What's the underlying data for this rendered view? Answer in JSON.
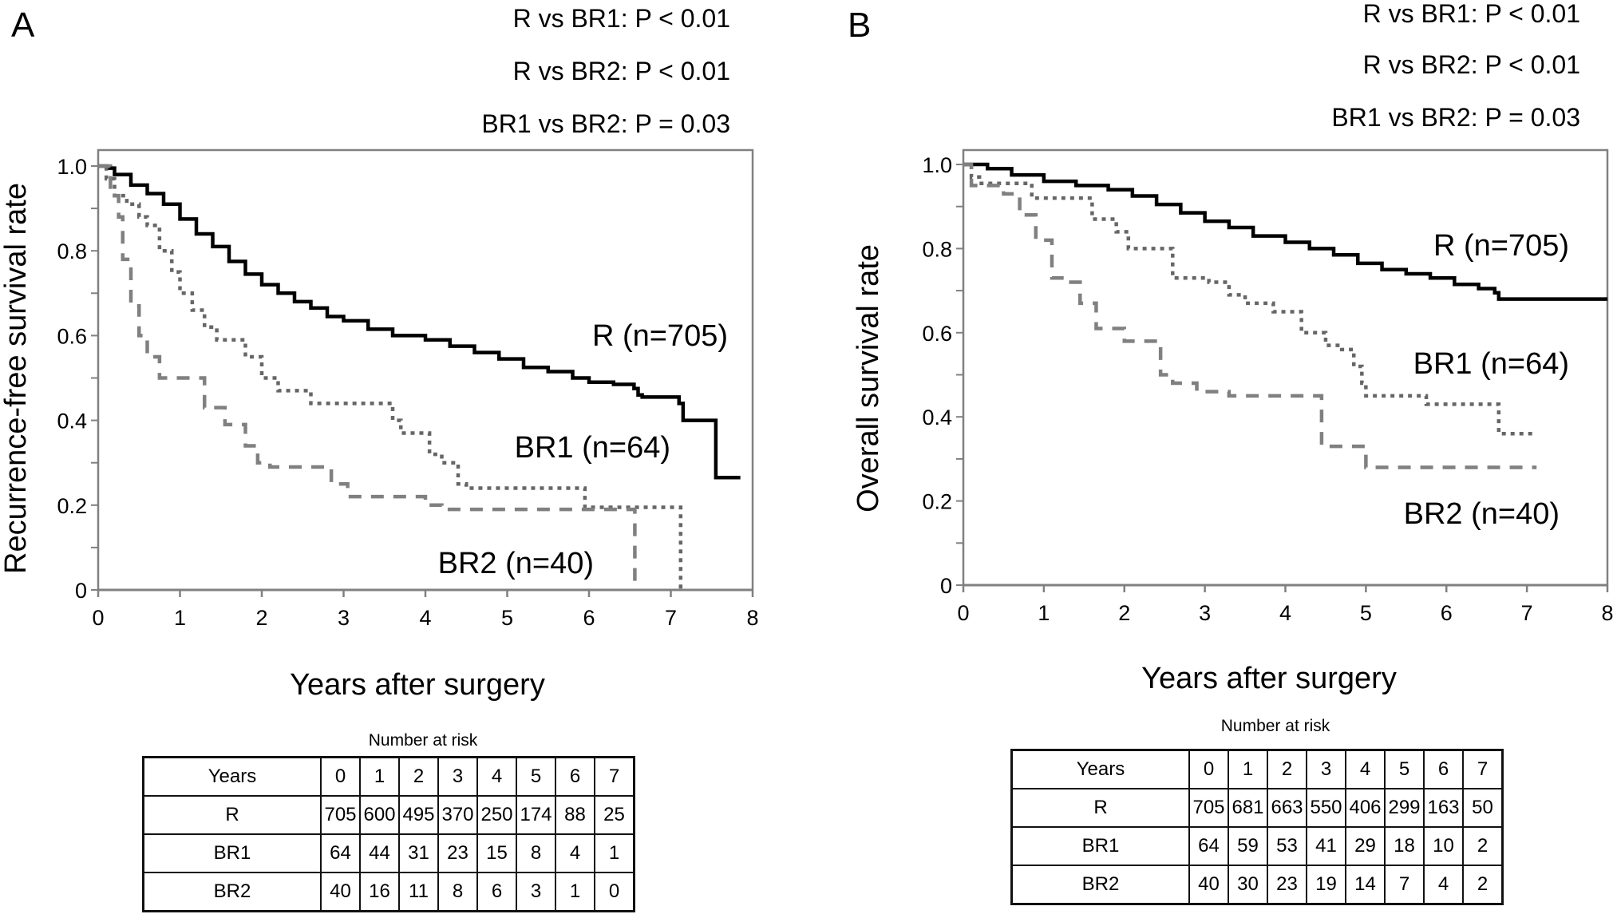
{
  "chart_data": [
    {
      "panel": "A",
      "type": "line",
      "step": true,
      "title": "",
      "xlabel": "Years after surgery",
      "ylabel": "Recurrence-free survival rate",
      "xlim": [
        0,
        8
      ],
      "ylim": [
        0,
        1.0
      ],
      "xticks": [
        "0",
        "1",
        "2",
        "3",
        "4",
        "5",
        "6",
        "7",
        "8"
      ],
      "yticks": [
        "0",
        "0.2",
        "0.4",
        "0.6",
        "0.8",
        "1.0"
      ],
      "grid": false,
      "annotations": [
        "R vs BR1: P < 0.01",
        "R vs BR2: P < 0.01",
        "BR1 vs BR2: P = 0.03"
      ],
      "series": [
        {
          "name": "R (n=705)",
          "style": "solid",
          "color": "#000000",
          "x": [
            0,
            0.1,
            0.2,
            0.4,
            0.6,
            0.8,
            1.0,
            1.2,
            1.4,
            1.6,
            1.8,
            2.0,
            2.2,
            2.4,
            2.6,
            2.8,
            3.0,
            3.3,
            3.6,
            4.0,
            4.3,
            4.6,
            4.9,
            5.2,
            5.5,
            5.8,
            6.0,
            6.3,
            6.55,
            6.6,
            6.65,
            7.1,
            7.15,
            7.55,
            7.85
          ],
          "y": [
            1.0,
            0.995,
            0.98,
            0.955,
            0.935,
            0.91,
            0.875,
            0.84,
            0.81,
            0.775,
            0.745,
            0.72,
            0.7,
            0.68,
            0.665,
            0.645,
            0.635,
            0.615,
            0.6,
            0.59,
            0.575,
            0.56,
            0.545,
            0.525,
            0.515,
            0.5,
            0.49,
            0.485,
            0.475,
            0.46,
            0.455,
            0.44,
            0.4,
            0.265,
            0.265
          ]
        },
        {
          "name": "BR1 (n=64)",
          "style": "dotted",
          "color": "#666666",
          "x": [
            0,
            0.1,
            0.2,
            0.35,
            0.5,
            0.6,
            0.75,
            0.9,
            1.0,
            1.15,
            1.3,
            1.45,
            1.65,
            1.8,
            2.0,
            2.2,
            2.4,
            2.6,
            2.75,
            3.1,
            3.5,
            3.6,
            3.7,
            3.85,
            4.05,
            4.2,
            4.4,
            4.5,
            4.75,
            5.9,
            5.95,
            7.1,
            7.12
          ],
          "y": [
            1.0,
            0.97,
            0.93,
            0.91,
            0.88,
            0.86,
            0.8,
            0.75,
            0.7,
            0.66,
            0.62,
            0.59,
            0.59,
            0.55,
            0.5,
            0.47,
            0.47,
            0.44,
            0.44,
            0.44,
            0.44,
            0.4,
            0.37,
            0.37,
            0.32,
            0.3,
            0.25,
            0.24,
            0.24,
            0.24,
            0.195,
            0.195,
            0.0
          ]
        },
        {
          "name": "BR2 (n=40)",
          "style": "dashed",
          "color": "#808080",
          "x": [
            0,
            0.15,
            0.25,
            0.3,
            0.4,
            0.5,
            0.6,
            0.75,
            1.0,
            1.3,
            1.55,
            1.8,
            1.95,
            2.1,
            2.85,
            3.05,
            4.0,
            4.2,
            5.9,
            6.55,
            6.56
          ],
          "y": [
            1.0,
            0.93,
            0.88,
            0.78,
            0.67,
            0.6,
            0.55,
            0.5,
            0.5,
            0.43,
            0.39,
            0.34,
            0.3,
            0.29,
            0.25,
            0.22,
            0.2,
            0.19,
            0.19,
            0.19,
            0.0
          ]
        }
      ],
      "number_at_risk": {
        "title": "Number at risk",
        "header": [
          "Years",
          "0",
          "1",
          "2",
          "3",
          "4",
          "5",
          "6",
          "7"
        ],
        "rows": [
          [
            "R",
            "705",
            "600",
            "495",
            "370",
            "250",
            "174",
            "88",
            "25"
          ],
          [
            "BR1",
            "64",
            "44",
            "31",
            "23",
            "15",
            "8",
            "4",
            "1"
          ],
          [
            "BR2",
            "40",
            "16",
            "11",
            "8",
            "6",
            "3",
            "1",
            "0"
          ]
        ]
      }
    },
    {
      "panel": "B",
      "type": "line",
      "step": true,
      "title": "",
      "xlabel": "Years after surgery",
      "ylabel": "Overall survival rate",
      "xlim": [
        0,
        8
      ],
      "ylim": [
        0,
        1.0
      ],
      "xticks": [
        "0",
        "1",
        "2",
        "3",
        "4",
        "5",
        "6",
        "7",
        "8"
      ],
      "yticks": [
        "0",
        "0.2",
        "0.4",
        "0.6",
        "0.8",
        "1.0"
      ],
      "grid": false,
      "annotations": [
        "R vs BR1: P < 0.01",
        "R vs BR2: P < 0.01",
        "BR1 vs BR2: P = 0.03"
      ],
      "series": [
        {
          "name": "R (n=705)",
          "style": "solid",
          "color": "#000000",
          "x": [
            0,
            0.3,
            0.6,
            1.0,
            1.4,
            1.8,
            2.1,
            2.4,
            2.7,
            3.0,
            3.3,
            3.6,
            4.0,
            4.3,
            4.6,
            4.9,
            5.2,
            5.5,
            5.8,
            6.1,
            6.4,
            6.6,
            6.65,
            8.0
          ],
          "y": [
            1.0,
            0.99,
            0.975,
            0.96,
            0.95,
            0.94,
            0.925,
            0.905,
            0.885,
            0.865,
            0.85,
            0.83,
            0.815,
            0.8,
            0.785,
            0.765,
            0.75,
            0.74,
            0.73,
            0.715,
            0.705,
            0.695,
            0.68,
            0.68
          ]
        },
        {
          "name": "BR1 (n=64)",
          "style": "dotted",
          "color": "#666666",
          "x": [
            0,
            0.1,
            0.2,
            0.6,
            0.85,
            1.45,
            1.6,
            1.9,
            2.05,
            2.45,
            2.6,
            3.05,
            3.3,
            3.5,
            3.85,
            4.1,
            4.2,
            4.5,
            4.7,
            4.85,
            4.95,
            5.0,
            5.7,
            5.75,
            6.6,
            6.65,
            7.12
          ],
          "y": [
            1.0,
            0.97,
            0.955,
            0.955,
            0.92,
            0.92,
            0.87,
            0.84,
            0.8,
            0.8,
            0.73,
            0.72,
            0.69,
            0.67,
            0.65,
            0.65,
            0.6,
            0.57,
            0.56,
            0.52,
            0.48,
            0.45,
            0.45,
            0.43,
            0.43,
            0.36,
            0.36
          ]
        },
        {
          "name": "BR2 (n=40)",
          "style": "dashed",
          "color": "#808080",
          "x": [
            0,
            0.1,
            0.5,
            0.7,
            0.9,
            1.1,
            1.25,
            1.45,
            1.65,
            2.0,
            2.3,
            2.45,
            2.6,
            2.9,
            3.3,
            4.35,
            4.45,
            4.95,
            5.0,
            7.12
          ],
          "y": [
            1.0,
            0.95,
            0.93,
            0.88,
            0.82,
            0.73,
            0.72,
            0.67,
            0.61,
            0.58,
            0.58,
            0.5,
            0.48,
            0.46,
            0.45,
            0.45,
            0.33,
            0.33,
            0.28,
            0.28
          ]
        }
      ],
      "number_at_risk": {
        "title": "Number at risk",
        "header": [
          "Years",
          "0",
          "1",
          "2",
          "3",
          "4",
          "5",
          "6",
          "7"
        ],
        "rows": [
          [
            "R",
            "705",
            "681",
            "663",
            "550",
            "406",
            "299",
            "163",
            "50"
          ],
          [
            "BR1",
            "64",
            "59",
            "53",
            "41",
            "29",
            "18",
            "10",
            "2"
          ],
          [
            "BR2",
            "40",
            "30",
            "23",
            "19",
            "14",
            "7",
            "4",
            "2"
          ]
        ]
      }
    }
  ],
  "panels": {
    "a": {
      "label": "A",
      "pvalues": [
        "R vs BR1: P < 0.01",
        "R vs BR2: P < 0.01",
        "BR1 vs BR2: P = 0.03"
      ],
      "ylabel": "Recurrence-free survival rate",
      "xlabel": "Years after surgery",
      "labels": {
        "r": "R (n=705)",
        "br1": "BR1 (n=64)",
        "br2": "BR2 (n=40)"
      },
      "risk_title": "Number at risk"
    },
    "b": {
      "label": "B",
      "pvalues": [
        "R vs BR1: P < 0.01",
        "R vs BR2: P < 0.01",
        "BR1 vs BR2: P = 0.03"
      ],
      "ylabel": "Overall survival rate",
      "xlabel": "Years after surgery",
      "labels": {
        "r": "R (n=705)",
        "br1": "BR1 (n=64)",
        "br2": "BR2 (n=40)"
      },
      "risk_title": "Number at risk"
    }
  }
}
